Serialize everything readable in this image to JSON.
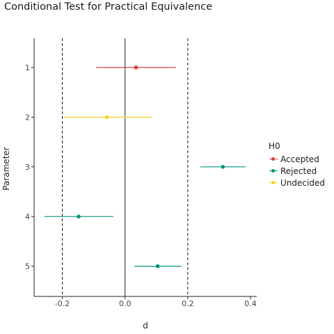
{
  "chart_data": {
    "type": "forest",
    "title": "Conditional Test for Practical Equivalence",
    "xlabel": "d",
    "ylabel": "Parameter",
    "xlim": [
      -0.29,
      0.42
    ],
    "xticks": [
      -0.2,
      0.0,
      0.2,
      0.4
    ],
    "xtick_labels": [
      "-0.2",
      "0.0",
      "0.2",
      "0.4"
    ],
    "equivalence_bounds": [
      -0.2,
      0.2
    ],
    "zero_line": 0.0,
    "grid": false,
    "legend": {
      "title": "H0",
      "placement": "right",
      "entries": [
        {
          "label": "Accepted",
          "color": "#d33f3a"
        },
        {
          "label": "Rejected",
          "color": "#00957a"
        },
        {
          "label": "Undecided",
          "color": "#f5d327"
        }
      ]
    },
    "categories": [
      "1",
      "2",
      "3",
      "4",
      "5"
    ],
    "points": [
      {
        "parameter": "1",
        "estimate": 0.035,
        "low": -0.092,
        "high": 0.162,
        "status": "Accepted"
      },
      {
        "parameter": "2",
        "estimate": -0.058,
        "low": -0.198,
        "high": 0.087,
        "status": "Undecided"
      },
      {
        "parameter": "3",
        "estimate": 0.312,
        "low": 0.24,
        "high": 0.385,
        "status": "Rejected"
      },
      {
        "parameter": "4",
        "estimate": -0.148,
        "low": -0.257,
        "high": -0.037,
        "status": "Rejected"
      },
      {
        "parameter": "5",
        "estimate": 0.104,
        "low": 0.03,
        "high": 0.18,
        "status": "Rejected"
      }
    ]
  }
}
